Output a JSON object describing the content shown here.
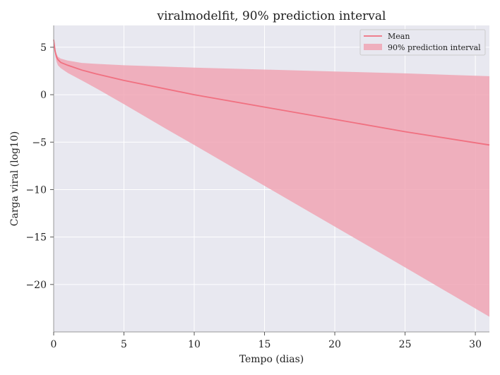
{
  "chart_data": {
    "type": "line",
    "title": "viralmodelfit, 90% prediction interval",
    "xlabel": "Tempo (dias)",
    "ylabel": "Carga viral (log10)",
    "xlim": [
      0,
      31
    ],
    "ylim": [
      -25,
      7.3
    ],
    "x_ticks": [
      0,
      5,
      10,
      15,
      20,
      25,
      30
    ],
    "y_ticks": [
      5,
      0,
      -5,
      -10,
      -15,
      -20
    ],
    "x_tick_labels": [
      "0",
      "5",
      "10",
      "15",
      "20",
      "25",
      "30"
    ],
    "y_tick_labels": [
      "5",
      "0",
      "−5",
      "−10",
      "−15",
      "−20"
    ],
    "grid": true,
    "legend_position": "top-right",
    "background_color": "#e8e8f0",
    "series": [
      {
        "name": "Mean",
        "color": "#f07080",
        "x": [
          0,
          0.1,
          0.2,
          0.3,
          0.5,
          1,
          2,
          3,
          5,
          10,
          15,
          20,
          25,
          31
        ],
        "y": [
          5.8,
          4.6,
          4.0,
          3.7,
          3.4,
          3.1,
          2.6,
          2.2,
          1.5,
          0.0,
          -1.3,
          -2.6,
          -3.9,
          -5.3
        ]
      },
      {
        "name": "90% prediction interval",
        "color": "#f0a0b0",
        "x": [
          0,
          0.1,
          0.2,
          0.3,
          0.5,
          1,
          2,
          3,
          5,
          8,
          10,
          15,
          20,
          25,
          31
        ],
        "lower": [
          5.8,
          4.2,
          3.5,
          3.1,
          2.8,
          2.3,
          1.5,
          0.7,
          -1.0,
          -3.6,
          -5.3,
          -9.6,
          -13.9,
          -18.2,
          -23.4
        ],
        "upper": [
          5.8,
          4.8,
          4.3,
          4.0,
          3.8,
          3.6,
          3.35,
          3.25,
          3.1,
          2.95,
          2.85,
          2.65,
          2.45,
          2.25,
          1.95
        ]
      }
    ]
  }
}
